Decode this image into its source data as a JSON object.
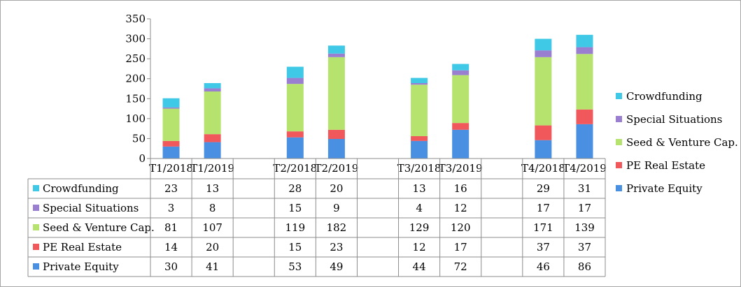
{
  "chart_data": {
    "type": "bar",
    "stacked": true,
    "categories": [
      "T1/2018",
      "T1/2019",
      "",
      "T2/2018",
      "T2/2019",
      "",
      "T3/2018",
      "T3/2019",
      "",
      "T4/2018",
      "T4/2019"
    ],
    "series": [
      {
        "name": "Private Equity",
        "color": "#4a90e2",
        "values": [
          30,
          41,
          null,
          53,
          49,
          null,
          44,
          72,
          null,
          46,
          86
        ]
      },
      {
        "name": "PE Real Estate",
        "color": "#f0585b",
        "values": [
          14,
          20,
          null,
          15,
          23,
          null,
          12,
          17,
          null,
          37,
          37
        ]
      },
      {
        "name": "Seed & Venture Cap.",
        "color": "#b5e36e",
        "values": [
          81,
          107,
          null,
          119,
          182,
          null,
          129,
          120,
          null,
          171,
          139
        ]
      },
      {
        "name": "Special Situations",
        "color": "#9a7fd1",
        "values": [
          3,
          8,
          null,
          15,
          9,
          null,
          4,
          12,
          null,
          17,
          17
        ]
      },
      {
        "name": "Crowdfunding",
        "color": "#3fc9e6",
        "values": [
          23,
          13,
          null,
          28,
          20,
          null,
          13,
          16,
          null,
          29,
          31
        ]
      }
    ],
    "yticks": [
      0,
      50,
      100,
      150,
      200,
      250,
      300,
      350
    ],
    "ylim": [
      0,
      350
    ],
    "legend": "right",
    "data_table": true
  }
}
